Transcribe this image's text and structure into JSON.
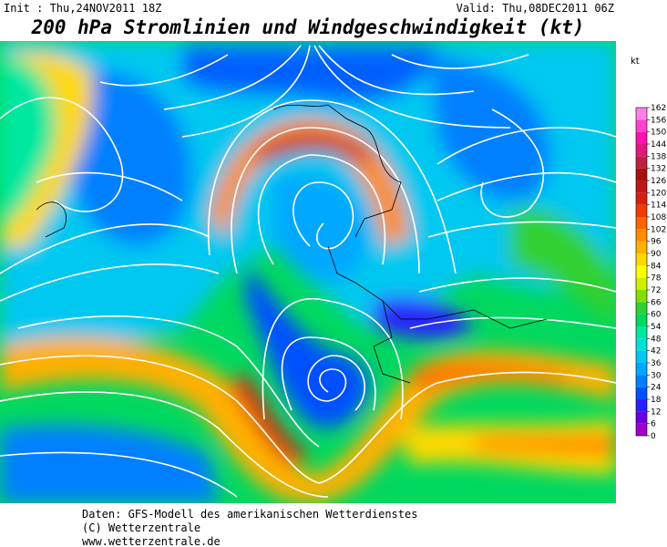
{
  "header": {
    "init": "Init : Thu,24NOV2011 18Z",
    "valid": "Valid: Thu,08DEC2011 06Z",
    "title": "200 hPa Stromlinien und Windgeschwindigkeit (kt)"
  },
  "colorbar": {
    "unit": "kt",
    "ticks": [
      0,
      6,
      12,
      18,
      24,
      30,
      36,
      42,
      48,
      54,
      60,
      66,
      72,
      78,
      84,
      90,
      96,
      102,
      108,
      114,
      120,
      126,
      132,
      138,
      144,
      150,
      156,
      162
    ],
    "colors": [
      "#a000c8",
      "#6a00e0",
      "#2a20ff",
      "#0050ff",
      "#0080ff",
      "#00a8ff",
      "#00c8f0",
      "#00e0d8",
      "#00e8a0",
      "#00d860",
      "#30d030",
      "#80e000",
      "#d0f000",
      "#ffff00",
      "#ffd800",
      "#ffb000",
      "#ff8c00",
      "#ff6400",
      "#f03c00",
      "#d82010",
      "#c01818",
      "#a81010",
      "#c02040",
      "#e01880",
      "#ff10b0",
      "#ff40d0",
      "#ff80e8"
    ]
  },
  "footer": {
    "lines": [
      "Daten: GFS-Modell des amerikanischen Wetterdienstes",
      "(C) Wetterzentrale",
      "www.wetterzentrale.de"
    ]
  }
}
